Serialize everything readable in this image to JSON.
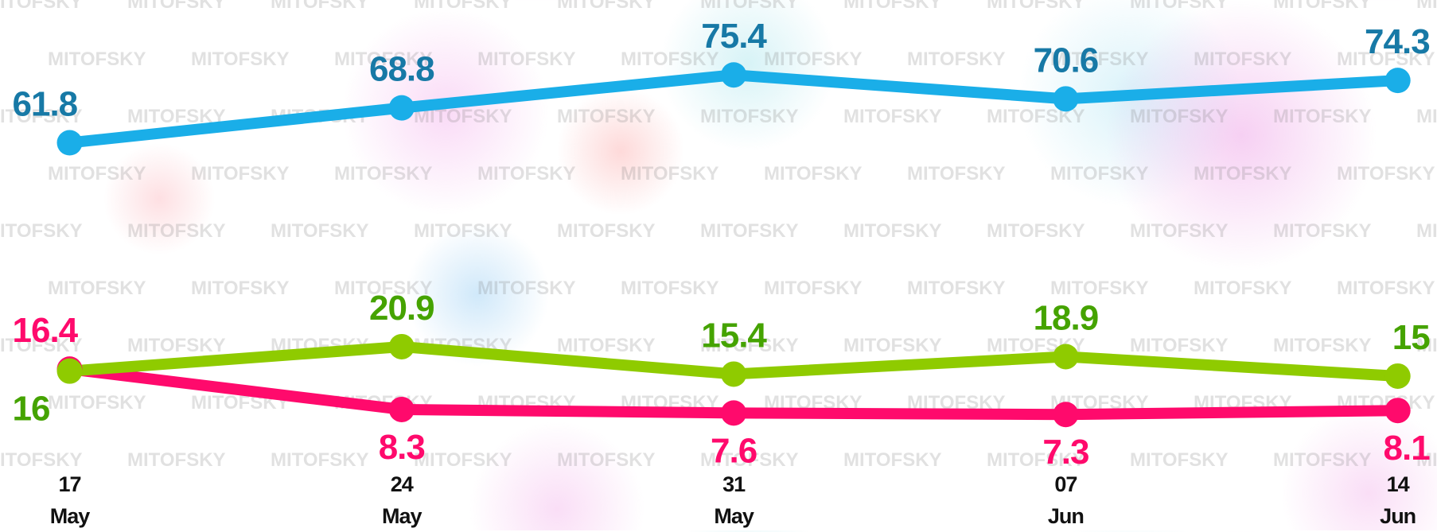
{
  "chart_data": {
    "type": "line",
    "watermark": "MITOFSKY",
    "categories": [
      "17\nMay",
      "24\nMay",
      "31\nMay",
      "07\nJun",
      "14\nJun"
    ],
    "ylim": [
      0,
      100
    ],
    "series": [
      {
        "color": "#1aaee8",
        "label_color": "#1779a6",
        "values": [
          61.8,
          68.8,
          75.4,
          70.6,
          74.3
        ]
      },
      {
        "color": "#ff0a6c",
        "label_color": "#ff0a6c",
        "values": [
          16.4,
          8.3,
          7.6,
          7.3,
          8.1
        ]
      },
      {
        "color": "#8fcb00",
        "label_color": "#45a300",
        "values": [
          16.0,
          20.9,
          15.4,
          18.9,
          15.0
        ]
      }
    ]
  }
}
